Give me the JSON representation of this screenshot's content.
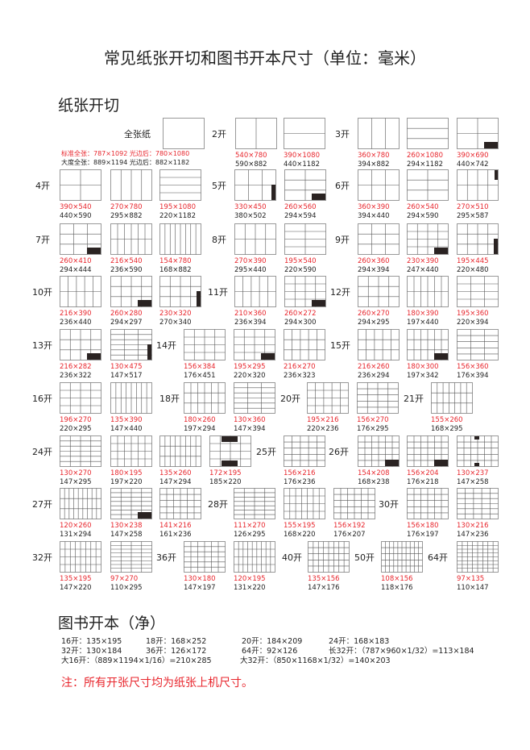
{
  "title": "常见纸张开切和图书开本尺寸（单位：毫米）",
  "section_cut": "纸张开切",
  "full_sheet": {
    "label": "全张纸",
    "standard": "标准全张：787×1092 光边后：780×1080",
    "large": "大度全张：889×1194 光边后：882×1182"
  },
  "rows": [
    {
      "groups": [
        {
          "label": "2开",
          "items": [
            {
              "trim": "540×780",
              "sheet": "590×882"
            },
            {
              "trim": "390×1080",
              "sheet": "440×1182"
            }
          ]
        },
        {
          "label": "3开",
          "items": [
            {
              "trim": "360×780",
              "sheet": "394×882"
            },
            {
              "trim": "260×1080",
              "sheet": "294×1182"
            },
            {
              "trim": "390×690",
              "sheet": "440×742"
            }
          ]
        }
      ]
    },
    {
      "groups": [
        {
          "label": "4开",
          "items": [
            {
              "trim": "390×540",
              "sheet": "440×590"
            },
            {
              "trim": "270×780",
              "sheet": "295×882"
            },
            {
              "trim": "195×1080",
              "sheet": "220×1182"
            }
          ]
        },
        {
          "label": "5开",
          "items": [
            {
              "trim": "330×450",
              "sheet": "380×502"
            },
            {
              "trim": "260×560",
              "sheet": "294×594"
            }
          ]
        },
        {
          "label": "6开",
          "items": [
            {
              "trim": "360×390",
              "sheet": "394×440"
            },
            {
              "trim": "260×540",
              "sheet": "294×590"
            },
            {
              "trim": "270×510",
              "sheet": "295×587"
            }
          ]
        }
      ]
    },
    {
      "groups": [
        {
          "label": "7开",
          "items": [
            {
              "trim": "260×410",
              "sheet": "294×444"
            },
            {
              "trim": "216×540",
              "sheet": "236×590"
            },
            {
              "trim": "154×780",
              "sheet": "168×882"
            }
          ]
        },
        {
          "label": "8开",
          "items": [
            {
              "trim": "270×390",
              "sheet": "295×440"
            },
            {
              "trim": "195×540",
              "sheet": "220×590"
            }
          ]
        },
        {
          "label": "9开",
          "items": [
            {
              "trim": "260×360",
              "sheet": "294×394"
            },
            {
              "trim": "230×390",
              "sheet": "247×440"
            },
            {
              "trim": "195×445",
              "sheet": "220×480"
            }
          ]
        }
      ]
    },
    {
      "groups": [
        {
          "label": "10开",
          "items": [
            {
              "trim": "216×390",
              "sheet": "236×440"
            },
            {
              "trim": "260×280",
              "sheet": "294×297"
            },
            {
              "trim": "230×320",
              "sheet": "270×340"
            }
          ]
        },
        {
          "label": "11开",
          "items": [
            {
              "trim": "210×360",
              "sheet": "236×394"
            },
            {
              "trim": "260×272",
              "sheet": "294×300"
            }
          ]
        },
        {
          "label": "12开",
          "items": [
            {
              "trim": "260×270",
              "sheet": "294×295"
            },
            {
              "trim": "180×390",
              "sheet": "197×440"
            },
            {
              "trim": "195×360",
              "sheet": "220×394"
            }
          ]
        }
      ]
    },
    {
      "groups": [
        {
          "label": "13开",
          "items": [
            {
              "trim": "216×282",
              "sheet": "236×322"
            },
            {
              "trim": "130×475",
              "sheet": "147×517"
            }
          ]
        },
        {
          "label": "14开",
          "items": [
            {
              "trim": "156×384",
              "sheet": "176×451"
            },
            {
              "trim": "195×295",
              "sheet": "220×320"
            },
            {
              "trim": "216×270",
              "sheet": "236×323"
            }
          ]
        },
        {
          "label": "15开",
          "items": [
            {
              "trim": "216×260",
              "sheet": "236×294"
            },
            {
              "trim": "180×300",
              "sheet": "197×342"
            },
            {
              "trim": "156×360",
              "sheet": "176×394"
            }
          ]
        }
      ]
    },
    {
      "groups": [
        {
          "label": "16开",
          "items": [
            {
              "trim": "196×270",
              "sheet": "220×295"
            },
            {
              "trim": "135×390",
              "sheet": "147×440"
            }
          ]
        },
        {
          "label": "18开",
          "items": [
            {
              "trim": "180×260",
              "sheet": "197×294"
            },
            {
              "trim": "130×360",
              "sheet": "147×394"
            }
          ]
        },
        {
          "label": "20开",
          "items": [
            {
              "trim": "195×216",
              "sheet": "220×236"
            },
            {
              "trim": "156×270",
              "sheet": "176×295"
            }
          ]
        },
        {
          "label": "21开",
          "items": [
            {
              "trim": "155×260",
              "sheet": "168×295"
            }
          ]
        }
      ]
    },
    {
      "groups": [
        {
          "label": "24开",
          "items": [
            {
              "trim": "130×270",
              "sheet": "147×295"
            },
            {
              "trim": "180×195",
              "sheet": "197×220"
            },
            {
              "trim": "135×260",
              "sheet": "147×294"
            },
            {
              "trim": "172×195",
              "sheet": "185×220"
            }
          ]
        },
        {
          "label": "25开",
          "items": [
            {
              "trim": "156×216",
              "sheet": "176×236"
            }
          ]
        },
        {
          "label": "26开",
          "items": [
            {
              "trim": "154×208",
              "sheet": "168×238"
            },
            {
              "trim": "156×204",
              "sheet": "176×218"
            },
            {
              "trim": "130×237",
              "sheet": "147×258"
            }
          ]
        }
      ]
    },
    {
      "groups": [
        {
          "label": "27开",
          "items": [
            {
              "trim": "120×260",
              "sheet": "131×294"
            },
            {
              "trim": "130×238",
              "sheet": "147×258"
            },
            {
              "trim": "141×216",
              "sheet": "161×236"
            }
          ]
        },
        {
          "label": "28开",
          "items": [
            {
              "trim": "111×270",
              "sheet": "126×295"
            },
            {
              "trim": "155×195",
              "sheet": "168×220"
            },
            {
              "trim": "156×192",
              "sheet": "176×207"
            }
          ]
        },
        {
          "label": "30开",
          "items": [
            {
              "trim": "156×180",
              "sheet": "176×197"
            },
            {
              "trim": "130×216",
              "sheet": "147×236"
            }
          ]
        }
      ]
    },
    {
      "groups": [
        {
          "label": "32开",
          "items": [
            {
              "trim": "135×195",
              "sheet": "147×220"
            },
            {
              "trim": "97×270",
              "sheet": "110×295"
            }
          ]
        },
        {
          "label": "36开",
          "items": [
            {
              "trim": "130×180",
              "sheet": "147×197"
            },
            {
              "trim": "120×195",
              "sheet": "131×220"
            }
          ]
        },
        {
          "label": "40开",
          "items": [
            {
              "trim": "135×156",
              "sheet": "147×176"
            }
          ]
        },
        {
          "label": "50开",
          "items": [
            {
              "trim": "108×156",
              "sheet": "118×176"
            }
          ]
        },
        {
          "label": "64开",
          "items": [
            {
              "trim": "97×135",
              "sheet": "110×147"
            }
          ]
        }
      ]
    }
  ],
  "section_book": "图书开本（净）",
  "book_formats": [
    [
      "16开：135×195",
      "18开：168×252",
      "20开：184×209",
      "24开：168×183"
    ],
    [
      "32开：130×184",
      "36开：126×172",
      "64开：92×126",
      "长32开：（787×960×1/32）=113×184"
    ],
    [
      "大16开：（889×1194×1/16）=210×285",
      "大32开：（850×1168×1/32）=140×203"
    ]
  ],
  "note": "注：所有开张尺寸均为纸张上机尺寸。",
  "colors": {
    "trim_size": "#e8262d",
    "sheet_size": "#222222",
    "cut_line": "#555555",
    "waste_block": "#2a2322"
  }
}
